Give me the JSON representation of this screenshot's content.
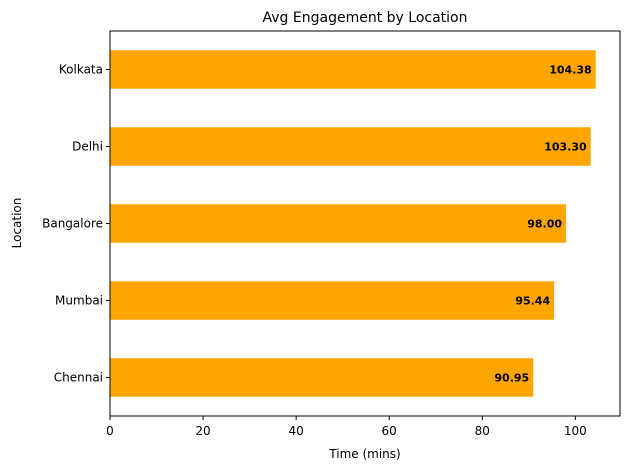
{
  "chart_data": {
    "type": "bar",
    "orientation": "horizontal",
    "title": "Avg Engagement by Location",
    "xlabel": "Time (mins)",
    "ylabel": "Location",
    "categories": [
      "Chennai",
      "Mumbai",
      "Bangalore",
      "Delhi",
      "Kolkata"
    ],
    "values": [
      90.95,
      95.44,
      98.0,
      103.3,
      104.38
    ],
    "data_labels": [
      "90.95",
      "95.44",
      "98.00",
      "103.30",
      "104.38"
    ],
    "xlim": [
      0,
      109.6
    ],
    "xticks": [
      0,
      20,
      40,
      60,
      80,
      100
    ],
    "bar_color": "#FFA500",
    "grid": false
  }
}
